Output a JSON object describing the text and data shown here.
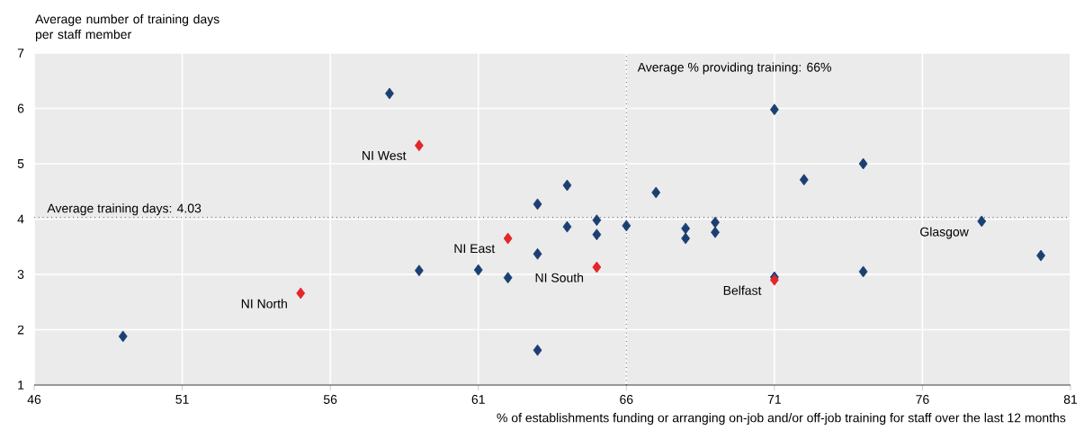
{
  "chart_data": {
    "type": "scatter",
    "xlabel": "% of establishments funding or arranging on-job and/or off-job training for staff over the last 12 months",
    "ylabel": "Average number of training days per staff member",
    "series": [
      {
        "color": "#1b3f73",
        "x": [
          49,
          58,
          59,
          61,
          62,
          63,
          63,
          63,
          64,
          64,
          65,
          65,
          66,
          67,
          68,
          68,
          69,
          69,
          71,
          71,
          72,
          74,
          74,
          78,
          80
        ],
        "values": [
          1.88,
          6.27,
          3.07,
          3.08,
          2.94,
          4.27,
          3.37,
          1.63,
          4.61,
          3.86,
          3.98,
          3.72,
          3.88,
          4.48,
          3.83,
          3.65,
          3.94,
          3.76,
          5.98,
          2.95,
          4.71,
          5.0,
          3.05,
          3.96,
          3.34
        ]
      },
      {
        "color": "#e3262a",
        "x": [
          59,
          55,
          62,
          65,
          71
        ],
        "values": [
          5.33,
          2.66,
          3.65,
          3.13,
          2.9
        ]
      }
    ],
    "annotations": [
      {
        "text": "NI West",
        "x": 59,
        "y": 5.33
      },
      {
        "text": "NI North",
        "x": 55,
        "y": 2.66
      },
      {
        "text": "NI East",
        "x": 62,
        "y": 3.65
      },
      {
        "text": "NI South",
        "x": 65,
        "y": 3.13
      },
      {
        "text": "Belfast",
        "x": 71,
        "y": 2.9
      },
      {
        "text": "Glasgow",
        "x": 78,
        "y": 3.96
      }
    ],
    "ref_lines": [
      {
        "axis": "x",
        "value": 66,
        "label": "Average % providing training: 66%",
        "line_style": "dotted"
      },
      {
        "axis": "y",
        "value": 4.03,
        "label": "Average training days: 4.03",
        "line_style": "dotted"
      }
    ],
    "xlim": [
      46,
      81
    ],
    "xticks": [
      46,
      51,
      56,
      61,
      66,
      71,
      76,
      81
    ],
    "ylim": [
      1,
      7
    ],
    "yticks": [
      1,
      2,
      3,
      4,
      5,
      6,
      7
    ],
    "grid": true,
    "marker": "diamond"
  }
}
